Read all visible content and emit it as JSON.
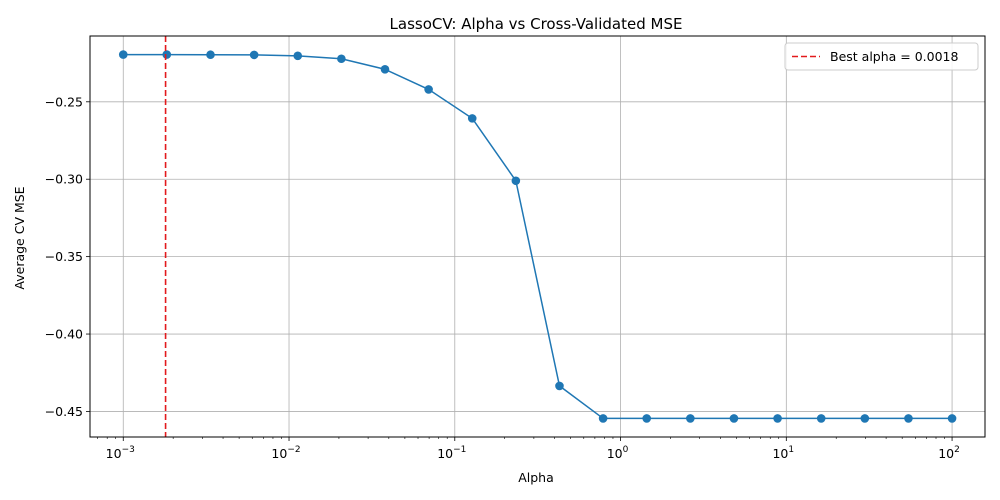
{
  "chart_data": {
    "type": "line",
    "title": "LassoCV: Alpha vs Cross-Validated MSE",
    "xlabel": "Alpha",
    "ylabel": "Average CV MSE",
    "xscale": "log",
    "xlim": [
      0.00063,
      158
    ],
    "ylim": [
      -0.4665,
      -0.2075
    ],
    "grid": true,
    "legend_position": "top-right",
    "x_ticks": [
      {
        "base": "10",
        "exp": "−3",
        "value": 0.001
      },
      {
        "base": "10",
        "exp": "−2",
        "value": 0.01
      },
      {
        "base": "10",
        "exp": "−1",
        "value": 0.1
      },
      {
        "base": "10",
        "exp": "0",
        "value": 1
      },
      {
        "base": "10",
        "exp": "1",
        "value": 10
      },
      {
        "base": "10",
        "exp": "2",
        "value": 100
      }
    ],
    "y_ticks": [
      {
        "label": "−0.25",
        "value": -0.25
      },
      {
        "label": "−0.30",
        "value": -0.3
      },
      {
        "label": "−0.35",
        "value": -0.35
      },
      {
        "label": "−0.40",
        "value": -0.4
      },
      {
        "label": "−0.45",
        "value": -0.45
      }
    ],
    "series": [
      {
        "color": "#1f77b4",
        "x": [
          0.001,
          0.00183,
          0.00336,
          0.00616,
          0.01129,
          0.02069,
          0.03793,
          0.06952,
          0.12743,
          0.23357,
          0.42813,
          0.78476,
          1.43845,
          2.63665,
          4.83293,
          8.85867,
          16.2378,
          29.7635,
          54.5559,
          100
        ],
        "y": [
          -0.2195,
          -0.2195,
          -0.2196,
          -0.2197,
          -0.2203,
          -0.2222,
          -0.229,
          -0.242,
          -0.2607,
          -0.301,
          -0.4335,
          -0.4545,
          -0.4545,
          -0.4545,
          -0.4545,
          -0.4545,
          -0.4545,
          -0.4545,
          -0.4545,
          -0.4545
        ]
      }
    ],
    "vline": {
      "x": 0.0018,
      "color": "#e31a1c",
      "label": "Best alpha = 0.0018"
    }
  }
}
